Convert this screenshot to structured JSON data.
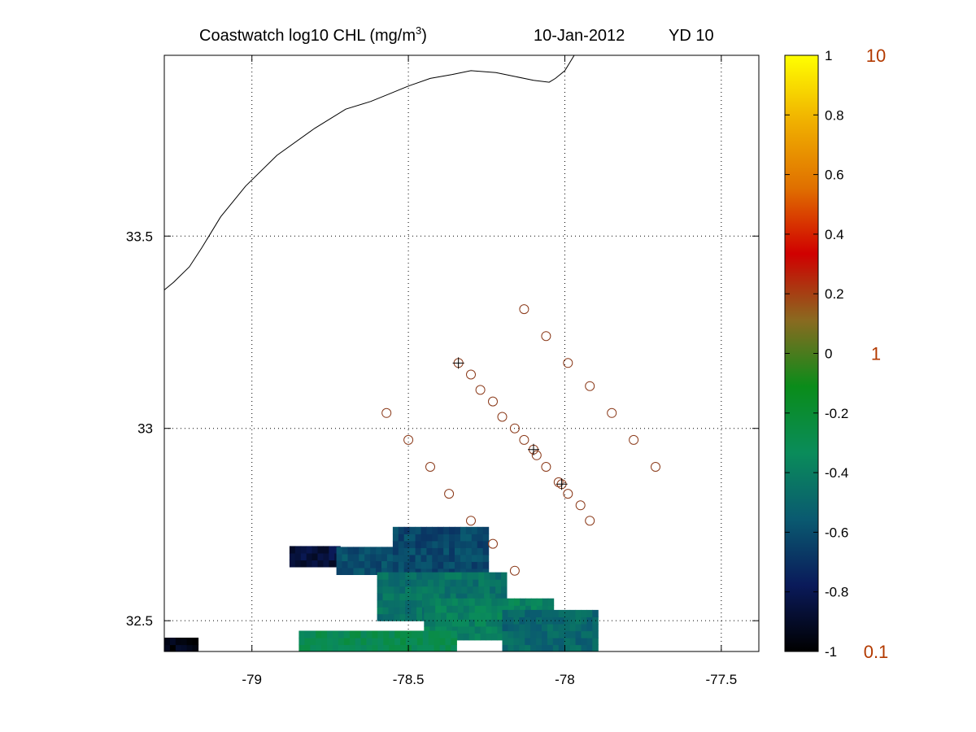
{
  "title": {
    "text": "Coastwatch  log10  CHL (mg/m",
    "superscript": "3",
    "close": ")",
    "date": "10-Jan-2012",
    "yearday": "YD 10"
  },
  "map": {
    "x_ticks": [
      {
        "value": -79,
        "label": "-79"
      },
      {
        "value": -78.5,
        "label": "-78.5"
      },
      {
        "value": -78,
        "label": "-78"
      },
      {
        "value": -77.5,
        "label": "-77.5"
      }
    ],
    "y_ticks": [
      {
        "value": 33.5,
        "label": "33.5"
      },
      {
        "value": 33,
        "label": "33"
      },
      {
        "value": 32.5,
        "label": "32.5"
      }
    ],
    "lon_range": [
      -79.28,
      -77.38
    ],
    "lat_range": [
      32.42,
      33.97
    ],
    "coastline": [
      [
        -79.28,
        33.36
      ],
      [
        -79.25,
        33.38
      ],
      [
        -79.2,
        33.42
      ],
      [
        -79.16,
        33.47
      ],
      [
        -79.1,
        33.55
      ],
      [
        -79.02,
        33.63
      ],
      [
        -78.92,
        33.71
      ],
      [
        -78.8,
        33.78
      ],
      [
        -78.7,
        33.83
      ],
      [
        -78.62,
        33.85
      ],
      [
        -78.56,
        33.87
      ],
      [
        -78.5,
        33.89
      ],
      [
        -78.43,
        33.91
      ],
      [
        -78.36,
        33.92
      ],
      [
        -78.3,
        33.93
      ],
      [
        -78.22,
        33.925
      ],
      [
        -78.16,
        33.915
      ],
      [
        -78.1,
        33.905
      ],
      [
        -78.05,
        33.9
      ],
      [
        -78.03,
        33.91
      ],
      [
        -78.0,
        33.93
      ],
      [
        -77.97,
        33.97
      ]
    ],
    "stations_open": [
      [
        -78.13,
        33.31
      ],
      [
        -78.06,
        33.24
      ],
      [
        -77.99,
        33.17
      ],
      [
        -77.92,
        33.11
      ],
      [
        -77.85,
        33.04
      ],
      [
        -77.78,
        32.97
      ],
      [
        -77.71,
        32.9
      ],
      [
        -78.3,
        33.14
      ],
      [
        -78.27,
        33.1
      ],
      [
        -78.23,
        33.07
      ],
      [
        -78.2,
        33.03
      ],
      [
        -78.16,
        33.0
      ],
      [
        -78.13,
        32.97
      ],
      [
        -78.09,
        32.93
      ],
      [
        -78.06,
        32.9
      ],
      [
        -78.02,
        32.86
      ],
      [
        -77.99,
        32.83
      ],
      [
        -77.95,
        32.8
      ],
      [
        -77.92,
        32.76
      ],
      [
        -78.57,
        33.04
      ],
      [
        -78.5,
        32.97
      ],
      [
        -78.43,
        32.9
      ],
      [
        -78.37,
        32.83
      ],
      [
        -78.3,
        32.76
      ],
      [
        -78.23,
        32.7
      ],
      [
        -78.16,
        32.63
      ]
    ],
    "stations_marked": [
      [
        -78.34,
        33.17
      ],
      [
        -78.1,
        32.945
      ],
      [
        -78.01,
        32.855
      ]
    ]
  },
  "chl_data": {
    "variable": "log10 CHL",
    "units": "mg/m3",
    "bounds": {
      "lon": [
        -79.28,
        -77.8
      ],
      "lat": [
        32.42,
        32.75
      ]
    },
    "patches": [
      {
        "lon": [
          -78.88,
          -78.73
        ],
        "lat": [
          32.64,
          32.69
        ],
        "value": -0.85
      },
      {
        "lon": [
          -78.73,
          -78.55
        ],
        "lat": [
          32.62,
          32.68
        ],
        "value": -0.6
      },
      {
        "lon": [
          -78.55,
          -78.25
        ],
        "lat": [
          32.6,
          32.74
        ],
        "value": -0.62
      },
      {
        "lon": [
          -78.6,
          -78.2
        ],
        "lat": [
          32.5,
          32.62
        ],
        "value": -0.45
      },
      {
        "lon": [
          -78.45,
          -78.05
        ],
        "lat": [
          32.45,
          32.55
        ],
        "value": -0.38
      },
      {
        "lon": [
          -78.2,
          -77.9
        ],
        "lat": [
          32.42,
          32.52
        ],
        "value": -0.5
      },
      {
        "lon": [
          -78.85,
          -78.35
        ],
        "lat": [
          32.42,
          32.47
        ],
        "value": -0.3
      },
      {
        "lon": [
          -79.28,
          -79.18
        ],
        "lat": [
          32.42,
          32.44
        ],
        "value": -0.95
      }
    ]
  },
  "colorbar": {
    "ticks": [
      {
        "value": 1,
        "label": "1"
      },
      {
        "value": 0.8,
        "label": "0.8"
      },
      {
        "value": 0.6,
        "label": "0.6"
      },
      {
        "value": 0.4,
        "label": "0.4"
      },
      {
        "value": 0.2,
        "label": "0.2"
      },
      {
        "value": 0,
        "label": "0"
      },
      {
        "value": -0.2,
        "label": "-0.2"
      },
      {
        "value": -0.4,
        "label": "-0.4"
      },
      {
        "value": -0.6,
        "label": "-0.6"
      },
      {
        "value": -0.8,
        "label": "-0.8"
      },
      {
        "value": -1,
        "label": "-1"
      }
    ],
    "linear_labels": [
      {
        "value": 1,
        "label": "10"
      },
      {
        "value": 0,
        "label": "1"
      },
      {
        "value": -1,
        "label": "0.1"
      }
    ],
    "colors": [
      "#000000",
      "#0a1a5a",
      "#0a5a70",
      "#0a8c5a",
      "#0a8c1a",
      "#8a6a20",
      "#d00000",
      "#e07000",
      "#f0b000",
      "#ffff00"
    ],
    "accent_label_color": "#b33a00",
    "marker_color": "#8b3a1a"
  }
}
